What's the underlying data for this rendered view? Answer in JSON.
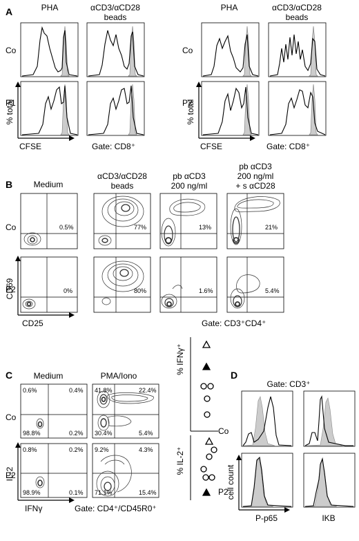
{
  "figure": {
    "panel_a": {
      "letter": "A",
      "left": {
        "col_titles": [
          "PHA",
          "αCD3/αCD28",
          "beads"
        ],
        "row_labels": [
          "Co",
          "P1"
        ],
        "y_axis": "% total",
        "x_axis": "CFSE",
        "gate": "Gate: CD8⁺"
      },
      "right": {
        "col_titles": [
          "PHA",
          "αCD3/αCD28",
          "beads"
        ],
        "row_labels": [
          "Co",
          "P2"
        ],
        "y_axis": "% total",
        "x_axis": "CFSE",
        "gate": "Gate: CD8⁺"
      }
    },
    "panel_b": {
      "letter": "B",
      "col_titles": [
        [
          "Medium"
        ],
        [
          "αCD3/αCD28",
          "beads"
        ],
        [
          "pb αCD3",
          "200 ng/ml"
        ],
        [
          "pb αCD3",
          "200 ng/ml",
          "+ s αCD28"
        ]
      ],
      "row_labels": [
        "Co",
        "P2"
      ],
      "percentages": [
        [
          "0.5%",
          "77%",
          "13%",
          "21%"
        ],
        [
          "0%",
          "80%",
          "1.6%",
          "5.4%"
        ]
      ],
      "y_axis": "CD69",
      "x_axis": "CD25",
      "gate": "Gate: CD3⁺CD4⁺"
    },
    "panel_c": {
      "letter": "C",
      "col_titles": [
        "Medium",
        "PMA/Iono"
      ],
      "row_labels": [
        "Co",
        "P2"
      ],
      "quadrants": [
        [
          {
            "ul": "0.6%",
            "ur": "0.4%",
            "ll": "98.8%",
            "lr": "0.2%"
          },
          {
            "ul": "41.8%",
            "ur": "22.4%",
            "ll": "30.4%",
            "lr": "5.4%"
          }
        ],
        [
          {
            "ul": "0.8%",
            "ur": "0.2%",
            "ll": "98.9%",
            "lr": "0.1%"
          },
          {
            "ul": "9.2%",
            "ur": "4.3%",
            "ll": "71.1%",
            "lr": "15.4%"
          }
        ]
      ],
      "y_axis": "IL-2",
      "x_axis": "IFNγ",
      "gate": "Gate: CD4⁺/CD45R0⁺",
      "dot_plots": {
        "top_label": "% IFNγ⁺",
        "bottom_label": "% IL-2⁺"
      }
    },
    "panel_d": {
      "letter": "D",
      "gate": "Gate: CD3⁺",
      "row_labels": [
        "Co",
        "P2"
      ],
      "y_axis": "cell count",
      "x_labels": [
        "P-p65",
        "IKB"
      ]
    }
  }
}
